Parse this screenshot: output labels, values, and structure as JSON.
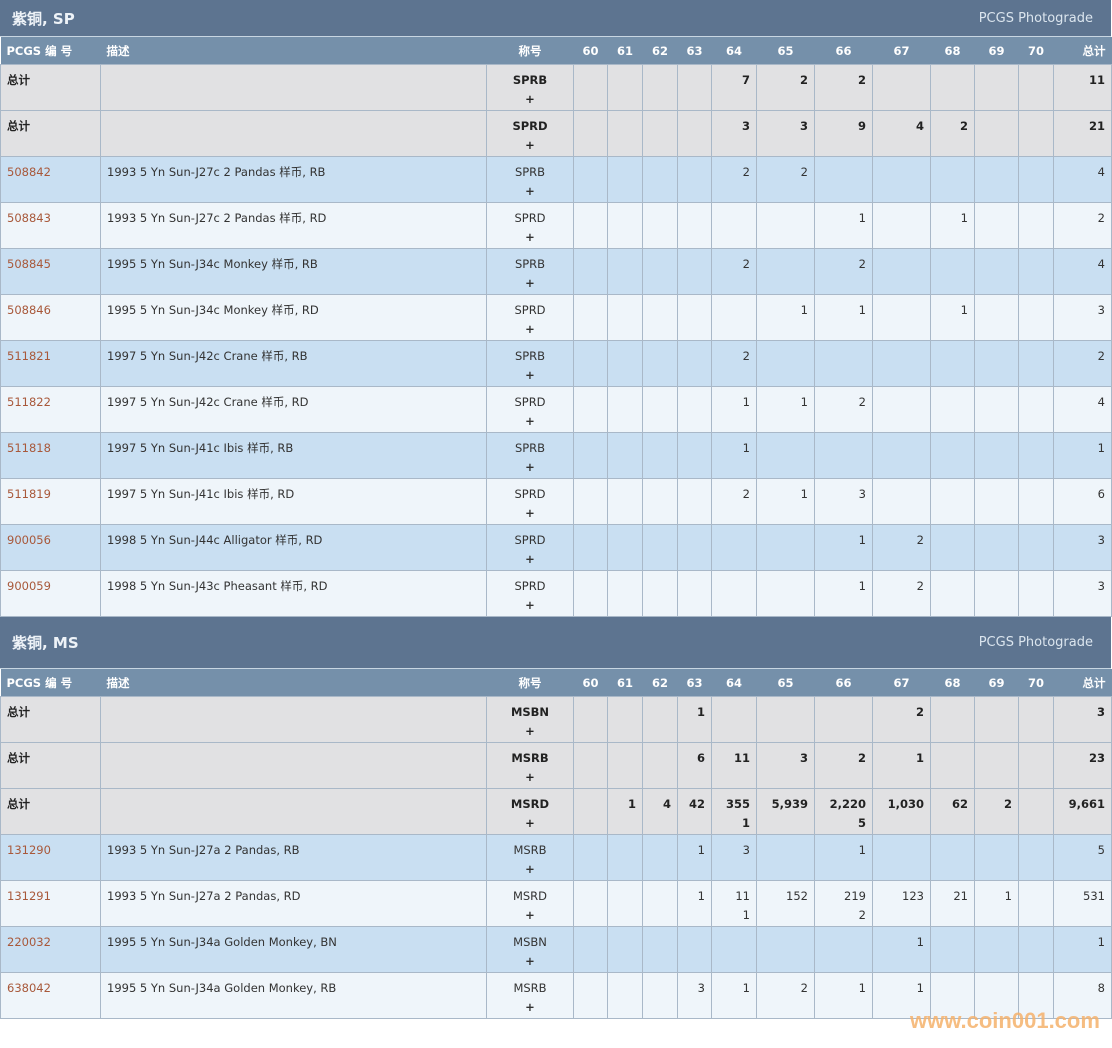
{
  "grade_headers": [
    "60",
    "61",
    "62",
    "63",
    "64",
    "65",
    "66",
    "67",
    "68",
    "69",
    "70"
  ],
  "column_labels": {
    "pcgs": "PCGS 编 号",
    "desc": "描述",
    "designation": "称号",
    "total": "总计"
  },
  "sections": [
    {
      "title": "紫铜, SP",
      "subtitle": "PCGS Photograde",
      "rows": [
        {
          "type": "total",
          "pcgs": "总计",
          "desc": "",
          "designation": "SPRB",
          "plus_sign": "+",
          "grades": [
            "",
            "",
            "",
            "",
            "7",
            "2",
            "2",
            "",
            "",
            "",
            ""
          ],
          "plus": [
            "",
            "",
            "",
            "",
            "",
            "",
            "",
            "",
            "",
            "",
            ""
          ],
          "total": "11"
        },
        {
          "type": "total",
          "pcgs": "总计",
          "desc": "",
          "designation": "SPRD",
          "plus_sign": "+",
          "grades": [
            "",
            "",
            "",
            "",
            "3",
            "3",
            "9",
            "4",
            "2",
            "",
            ""
          ],
          "plus": [
            "",
            "",
            "",
            "",
            "",
            "",
            "",
            "",
            "",
            "",
            ""
          ],
          "total": "21"
        },
        {
          "type": "coin",
          "pcgs": "508842",
          "desc": "1993 5 Yn Sun-J27c 2 Pandas 样币, RB",
          "designation": "SPRB",
          "plus_sign": "+",
          "grades": [
            "",
            "",
            "",
            "",
            "2",
            "2",
            "",
            "",
            "",
            "",
            ""
          ],
          "plus": [
            "",
            "",
            "",
            "",
            "",
            "",
            "",
            "",
            "",
            "",
            ""
          ],
          "total": "4"
        },
        {
          "type": "coin",
          "pcgs": "508843",
          "desc": "1993 5 Yn Sun-J27c 2 Pandas 样币, RD",
          "designation": "SPRD",
          "plus_sign": "+",
          "grades": [
            "",
            "",
            "",
            "",
            "",
            "",
            "1",
            "",
            "1",
            "",
            ""
          ],
          "plus": [
            "",
            "",
            "",
            "",
            "",
            "",
            "",
            "",
            "",
            "",
            ""
          ],
          "total": "2"
        },
        {
          "type": "coin",
          "pcgs": "508845",
          "desc": "1995 5 Yn Sun-J34c Monkey 样币, RB",
          "designation": "SPRB",
          "plus_sign": "+",
          "grades": [
            "",
            "",
            "",
            "",
            "2",
            "",
            "2",
            "",
            "",
            "",
            ""
          ],
          "plus": [
            "",
            "",
            "",
            "",
            "",
            "",
            "",
            "",
            "",
            "",
            ""
          ],
          "total": "4"
        },
        {
          "type": "coin",
          "pcgs": "508846",
          "desc": "1995 5 Yn Sun-J34c Monkey 样币, RD",
          "designation": "SPRD",
          "plus_sign": "+",
          "grades": [
            "",
            "",
            "",
            "",
            "",
            "1",
            "1",
            "",
            "1",
            "",
            ""
          ],
          "plus": [
            "",
            "",
            "",
            "",
            "",
            "",
            "",
            "",
            "",
            "",
            ""
          ],
          "total": "3"
        },
        {
          "type": "coin",
          "pcgs": "511821",
          "desc": "1997 5 Yn Sun-J42c Crane 样币, RB",
          "designation": "SPRB",
          "plus_sign": "+",
          "grades": [
            "",
            "",
            "",
            "",
            "2",
            "",
            "",
            "",
            "",
            "",
            ""
          ],
          "plus": [
            "",
            "",
            "",
            "",
            "",
            "",
            "",
            "",
            "",
            "",
            ""
          ],
          "total": "2"
        },
        {
          "type": "coin",
          "pcgs": "511822",
          "desc": "1997 5 Yn Sun-J42c Crane 样币, RD",
          "designation": "SPRD",
          "plus_sign": "+",
          "grades": [
            "",
            "",
            "",
            "",
            "1",
            "1",
            "2",
            "",
            "",
            "",
            ""
          ],
          "plus": [
            "",
            "",
            "",
            "",
            "",
            "",
            "",
            "",
            "",
            "",
            ""
          ],
          "total": "4"
        },
        {
          "type": "coin",
          "pcgs": "511818",
          "desc": "1997 5 Yn Sun-J41c Ibis 样币, RB",
          "designation": "SPRB",
          "plus_sign": "+",
          "grades": [
            "",
            "",
            "",
            "",
            "1",
            "",
            "",
            "",
            "",
            "",
            ""
          ],
          "plus": [
            "",
            "",
            "",
            "",
            "",
            "",
            "",
            "",
            "",
            "",
            ""
          ],
          "total": "1"
        },
        {
          "type": "coin",
          "pcgs": "511819",
          "desc": "1997 5 Yn Sun-J41c Ibis 样币, RD",
          "designation": "SPRD",
          "plus_sign": "+",
          "grades": [
            "",
            "",
            "",
            "",
            "2",
            "1",
            "3",
            "",
            "",
            "",
            ""
          ],
          "plus": [
            "",
            "",
            "",
            "",
            "",
            "",
            "",
            "",
            "",
            "",
            ""
          ],
          "total": "6"
        },
        {
          "type": "coin",
          "pcgs": "900056",
          "desc": "1998 5 Yn Sun-J44c Alligator 样币, RD",
          "designation": "SPRD",
          "plus_sign": "+",
          "grades": [
            "",
            "",
            "",
            "",
            "",
            "",
            "1",
            "2",
            "",
            "",
            ""
          ],
          "plus": [
            "",
            "",
            "",
            "",
            "",
            "",
            "",
            "",
            "",
            "",
            ""
          ],
          "total": "3"
        },
        {
          "type": "coin",
          "pcgs": "900059",
          "desc": "1998 5 Yn Sun-J43c Pheasant 样币, RD",
          "designation": "SPRD",
          "plus_sign": "+",
          "grades": [
            "",
            "",
            "",
            "",
            "",
            "",
            "1",
            "2",
            "",
            "",
            ""
          ],
          "plus": [
            "",
            "",
            "",
            "",
            "",
            "",
            "",
            "",
            "",
            "",
            ""
          ],
          "total": "3"
        }
      ]
    },
    {
      "title": "紫铜, MS",
      "subtitle": "PCGS Photograde",
      "rows": [
        {
          "type": "total",
          "pcgs": "总计",
          "desc": "",
          "designation": "MSBN",
          "plus_sign": "+",
          "grades": [
            "",
            "",
            "",
            "1",
            "",
            "",
            "",
            "2",
            "",
            "",
            ""
          ],
          "plus": [
            "",
            "",
            "",
            "",
            "",
            "",
            "",
            "",
            "",
            "",
            ""
          ],
          "total": "3"
        },
        {
          "type": "total",
          "pcgs": "总计",
          "desc": "",
          "designation": "MSRB",
          "plus_sign": "+",
          "grades": [
            "",
            "",
            "",
            "6",
            "11",
            "3",
            "2",
            "1",
            "",
            "",
            ""
          ],
          "plus": [
            "",
            "",
            "",
            "",
            "",
            "",
            "",
            "",
            "",
            "",
            ""
          ],
          "total": "23"
        },
        {
          "type": "total",
          "pcgs": "总计",
          "desc": "",
          "designation": "MSRD",
          "plus_sign": "+",
          "grades": [
            "",
            "1",
            "4",
            "42",
            "355",
            "5,939",
            "2,220",
            "1,030",
            "62",
            "2",
            ""
          ],
          "plus": [
            "",
            "",
            "",
            "",
            "1",
            "",
            "5",
            "",
            "",
            "",
            ""
          ],
          "total": "9,661"
        },
        {
          "type": "coin",
          "pcgs": "131290",
          "desc": "1993 5 Yn Sun-J27a 2 Pandas, RB",
          "designation": "MSRB",
          "plus_sign": "+",
          "grades": [
            "",
            "",
            "",
            "1",
            "3",
            "",
            "1",
            "",
            "",
            "",
            ""
          ],
          "plus": [
            "",
            "",
            "",
            "",
            "",
            "",
            "",
            "",
            "",
            "",
            ""
          ],
          "total": "5"
        },
        {
          "type": "coin",
          "pcgs": "131291",
          "desc": "1993 5 Yn Sun-J27a 2 Pandas, RD",
          "designation": "MSRD",
          "plus_sign": "+",
          "grades": [
            "",
            "",
            "",
            "1",
            "11",
            "152",
            "219",
            "123",
            "21",
            "1",
            ""
          ],
          "plus": [
            "",
            "",
            "",
            "",
            "1",
            "",
            "2",
            "",
            "",
            "",
            ""
          ],
          "total": "531"
        },
        {
          "type": "coin",
          "pcgs": "220032",
          "desc": "1995 5 Yn Sun-J34a Golden Monkey, BN",
          "designation": "MSBN",
          "plus_sign": "+",
          "grades": [
            "",
            "",
            "",
            "",
            "",
            "",
            "",
            "1",
            "",
            "",
            ""
          ],
          "plus": [
            "",
            "",
            "",
            "",
            "",
            "",
            "",
            "",
            "",
            "",
            ""
          ],
          "total": "1"
        },
        {
          "type": "coin",
          "pcgs": "638042",
          "desc": "1995 5 Yn Sun-J34a Golden Monkey, RB",
          "designation": "MSRB",
          "plus_sign": "+",
          "grades": [
            "",
            "",
            "",
            "3",
            "1",
            "2",
            "1",
            "1",
            "",
            "",
            ""
          ],
          "plus": [
            "",
            "",
            "",
            "",
            "",
            "",
            "",
            "",
            "",
            "",
            ""
          ],
          "total": "8"
        }
      ]
    }
  ],
  "watermark": "www.coin001.com",
  "colors": {
    "section_header": "#5d7490",
    "column_header": "#7590aa",
    "total_row": "#e1e1e3",
    "blue_row": "#c9dff2",
    "light_row": "#eff5fa",
    "link": "#a8583a"
  }
}
